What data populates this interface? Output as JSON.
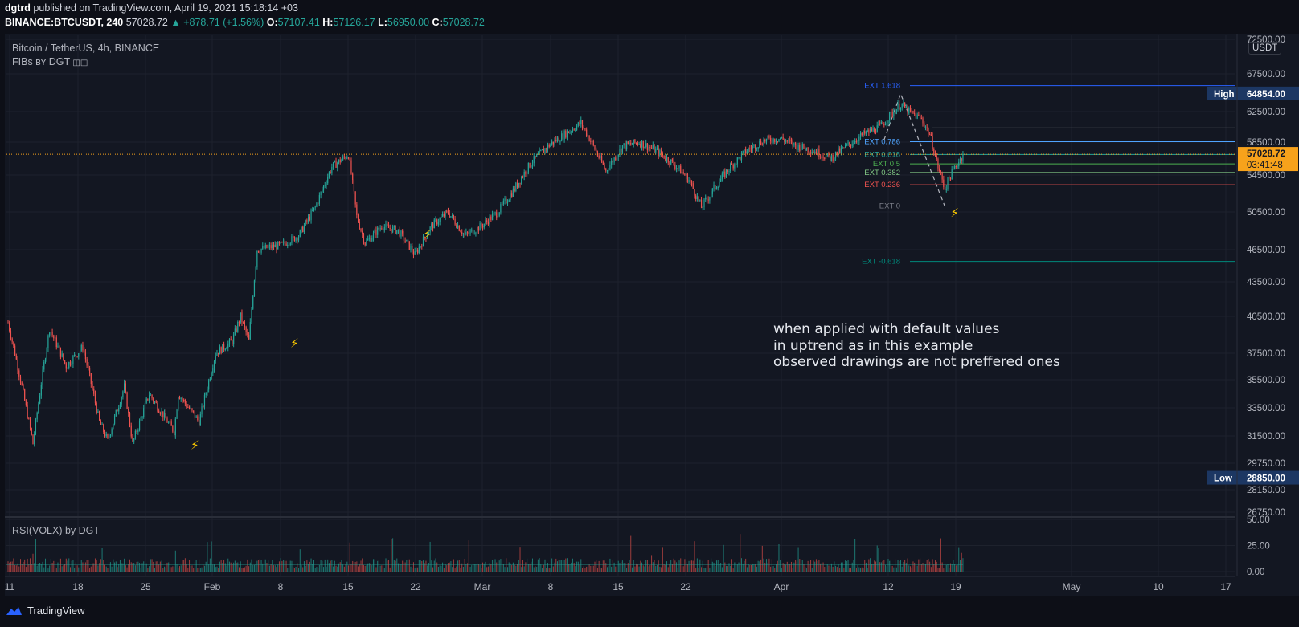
{
  "header": {
    "user": "dgtrd",
    "published": "published on TradingView.com, April 19, 2021 15:18:14 +03",
    "symbol": "BINANCE:BTCUSDT, 240",
    "last": "57028.72",
    "change": "▲ +878.71 (+1.56%)",
    "o_label": "O:",
    "o": "57107.41",
    "h_label": "H:",
    "h": "57126.17",
    "l_label": "L:",
    "l": "56950.00",
    "c_label": "C:",
    "c": "57028.72"
  },
  "pane": {
    "title": "Bitcoin / TetherUS, 4h, BINANCE",
    "indicator": "FIBs ʙʏ DGT",
    "indicator_icons": "◫◫",
    "currency": "USDT",
    "sub_title": "RSI(VOLX) by DGT"
  },
  "note": {
    "lines": [
      "when applied with default values",
      "in uptrend as in this example",
      "observed drawings are not preffered ones"
    ]
  },
  "footer": {
    "brand": "TradingView"
  },
  "colors": {
    "bg": "#131722",
    "bull": "#26a69a",
    "bear": "#ef5350",
    "grid": "#1e222d",
    "price_line": "#f7a21b",
    "text": "#b2b5be"
  },
  "chart_data": {
    "type": "candlestick",
    "title": "Bitcoin / TetherUS, 4h, BINANCE",
    "ylim": [
      26750,
      72500
    ],
    "y_ticks": [
      72500,
      67500,
      62500,
      58500,
      54500,
      50500,
      46500,
      43500,
      40500,
      37500,
      35500,
      33500,
      31500,
      29750,
      28150,
      26750
    ],
    "x_ticks": [
      "11",
      "18",
      "25",
      "Feb",
      "8",
      "15",
      "22",
      "Mar",
      "8",
      "15",
      "22",
      "Apr",
      "12",
      "19",
      "May",
      "10",
      "17"
    ],
    "path": [
      [
        0,
        40000
      ],
      [
        3,
        31000
      ],
      [
        5,
        39500
      ],
      [
        7,
        36500
      ],
      [
        9,
        38000
      ],
      [
        11,
        32500
      ],
      [
        12,
        31200
      ],
      [
        14,
        35000
      ],
      [
        15,
        31000
      ],
      [
        17,
        34500
      ],
      [
        20,
        31800
      ],
      [
        20.5,
        34500
      ],
      [
        23,
        32500
      ],
      [
        25,
        37500
      ],
      [
        27,
        38500
      ],
      [
        28,
        40500
      ],
      [
        29,
        38500
      ],
      [
        30,
        46500
      ],
      [
        33,
        47000
      ],
      [
        35,
        48000
      ],
      [
        37,
        51000
      ],
      [
        39,
        55500
      ],
      [
        41,
        57000
      ],
      [
        42,
        50000
      ],
      [
        43,
        47200
      ],
      [
        45,
        49000
      ],
      [
        47,
        48500
      ],
      [
        49,
        46000
      ],
      [
        51,
        49000
      ],
      [
        53,
        50500
      ],
      [
        55,
        48000
      ],
      [
        57,
        49000
      ],
      [
        59,
        50500
      ],
      [
        61,
        53000
      ],
      [
        63,
        56000
      ],
      [
        65,
        58000
      ],
      [
        67,
        59500
      ],
      [
        69,
        61000
      ],
      [
        70,
        59000
      ],
      [
        72,
        55000
      ],
      [
        74,
        58000
      ],
      [
        76,
        58500
      ],
      [
        78,
        57500
      ],
      [
        80,
        56000
      ],
      [
        82,
        54000
      ],
      [
        83.5,
        51000
      ],
      [
        85,
        53000
      ],
      [
        87,
        55500
      ],
      [
        89,
        57500
      ],
      [
        91,
        58700
      ],
      [
        93,
        59000
      ],
      [
        95,
        58000
      ],
      [
        97,
        57500
      ],
      [
        99,
        56500
      ],
      [
        101,
        58000
      ],
      [
        103,
        59500
      ],
      [
        105,
        60500
      ],
      [
        106.5,
        62300
      ],
      [
        107.5,
        63500
      ],
      [
        108.5,
        62500
      ],
      [
        110,
        61500
      ],
      [
        111,
        59500
      ],
      [
        112,
        55500
      ],
      [
        112.8,
        53000
      ],
      [
        113.5,
        54500
      ],
      [
        115,
        57028.72
      ]
    ],
    "last_price": 57028.72,
    "last_price_countdown": "03:41:48",
    "high": {
      "label": "High",
      "value": "64854.00"
    },
    "low": {
      "label": "Low",
      "value": "28850.00"
    },
    "fib_levels": [
      {
        "label": "EXT 1.618",
        "value": 65950,
        "color": "#2962ff"
      },
      {
        "label": "EXT 0.786",
        "value": 58550,
        "color": "#4fa4ff"
      },
      {
        "label": "EXT 0.618",
        "value": 57000,
        "color": "#26a69a"
      },
      {
        "label": "EXT 0.5",
        "value": 55850,
        "color": "#4caf50"
      },
      {
        "label": "EXT 0.382",
        "value": 54800,
        "color": "#81c784"
      },
      {
        "label": "EXT 0.236",
        "value": 53450,
        "color": "#ef5350"
      },
      {
        "label": "EXT 0",
        "value": 51150,
        "color": "#787b86"
      },
      {
        "label": "EXT -0.618",
        "value": 45400,
        "color": "#00897b"
      }
    ],
    "extra_level": 60350,
    "rsi_ticks": [
      50.0,
      25.0,
      0.0
    ],
    "rsi_tick_labels": [
      "50.00",
      "25.00",
      "0.00"
    ],
    "signals": [
      {
        "bar": 22.5,
        "value": 30900
      },
      {
        "bar": 34.5,
        "value": 38300
      },
      {
        "bar": 50.5,
        "value": 48100
      },
      {
        "bar": 114.0,
        "value": 50400
      }
    ]
  }
}
